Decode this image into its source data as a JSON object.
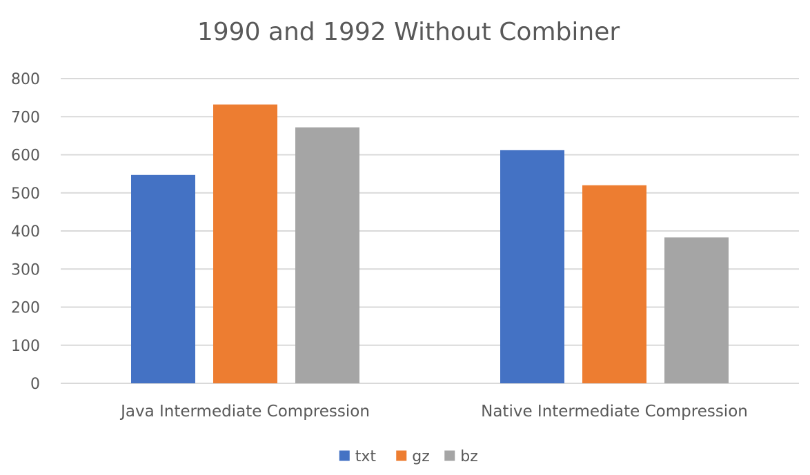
{
  "chart_data": {
    "type": "bar",
    "title": "1990 and 1992 Without Combiner",
    "xlabel": "",
    "ylabel": "",
    "categories": [
      "Java Intermediate Compression",
      "Native Intermediate Compression"
    ],
    "series": [
      {
        "name": "txt",
        "values": [
          547,
          612
        ],
        "color": "#4472C4"
      },
      {
        "name": "gz",
        "values": [
          732,
          520
        ],
        "color": "#ED7D31"
      },
      {
        "name": "bz",
        "values": [
          672,
          383
        ],
        "color": "#A5A5A5"
      }
    ],
    "ylim": [
      0,
      800
    ],
    "yticks": [
      0,
      100,
      200,
      300,
      400,
      500,
      600,
      700,
      800
    ],
    "grid": true,
    "gridColor": "#D9D9D9",
    "legend": "bottom"
  }
}
